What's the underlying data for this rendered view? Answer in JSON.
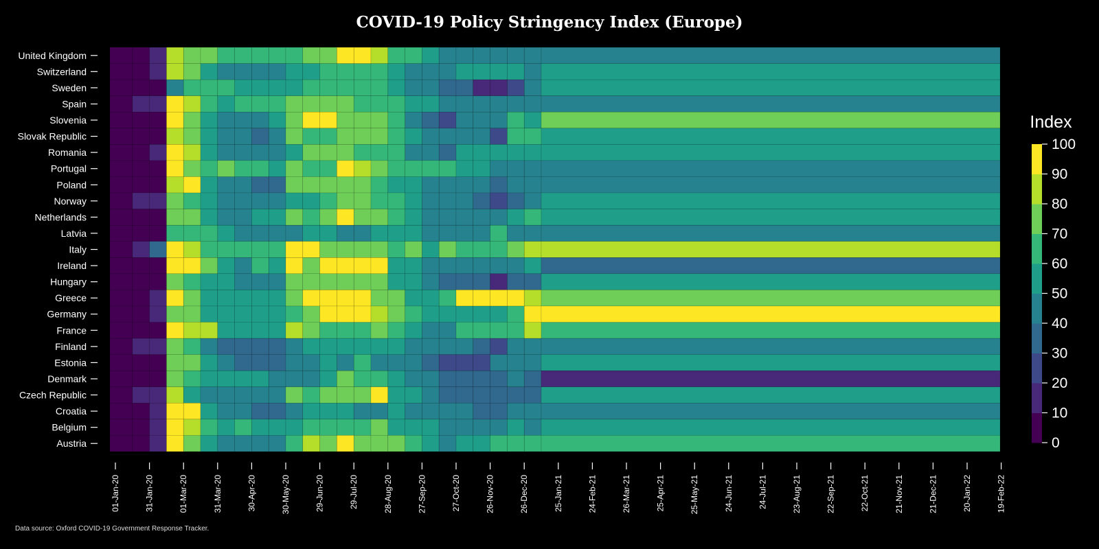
{
  "chart_data": {
    "type": "heatmap",
    "title": "COVID-19 Policy Stringency Index (Europe)",
    "colorbar_label": "Index",
    "colorbar_ticks": [
      0,
      10,
      20,
      30,
      40,
      50,
      60,
      70,
      80,
      90,
      100
    ],
    "color_range": [
      0,
      100
    ],
    "bin_size_days": 15,
    "x_tick_labels": [
      "01-Jan-20",
      "31-Jan-20",
      "01-Mar-20",
      "31-Mar-20",
      "30-Apr-20",
      "30-May-20",
      "29-Jun-20",
      "29-Jul-20",
      "28-Aug-20",
      "27-Sep-20",
      "27-Oct-20",
      "26-Nov-20",
      "26-Dec-20",
      "25-Jan-21",
      "24-Feb-21",
      "26-Mar-21",
      "25-Apr-21",
      "25-May-21",
      "24-Jun-21",
      "24-Jul-21",
      "23-Aug-21",
      "22-Sep-21",
      "22-Oct-21",
      "21-Nov-21",
      "21-Dec-21",
      "20-Jan-22",
      "19-Feb-22"
    ],
    "countries": [
      "United Kingdom",
      "Switzerland",
      "Sweden",
      "Spain",
      "Slovenia",
      "Slovak Republic",
      "Romania",
      "Portugal",
      "Poland",
      "Norway",
      "Netherlands",
      "Latvia",
      "Italy",
      "Ireland",
      "Hungary",
      "Greece",
      "Germany",
      "France",
      "Finland",
      "Estonia",
      "Denmark",
      "Czech Republic",
      "Croatia",
      "Belgium",
      "Austria"
    ],
    "series": [
      {
        "name": "United Kingdom",
        "values": [
          5,
          5,
          15,
          85,
          78,
          70,
          65,
          68,
          65,
          66,
          63,
          70,
          75,
          90,
          92,
          80,
          68,
          60,
          55,
          45,
          42,
          42,
          42,
          42,
          42,
          44
        ]
      },
      {
        "name": "Switzerland",
        "values": [
          5,
          5,
          10,
          80,
          72,
          58,
          42,
          45,
          48,
          48,
          50,
          58,
          66,
          66,
          64,
          60,
          52,
          45,
          46,
          46,
          50,
          56,
          56,
          50,
          45,
          55
        ]
      },
      {
        "name": "Sweden",
        "values": [
          5,
          5,
          5,
          45,
          62,
          64,
          60,
          55,
          55,
          55,
          58,
          64,
          66,
          64,
          60,
          60,
          58,
          48,
          40,
          35,
          30,
          10,
          10,
          20,
          42,
          52
        ]
      },
      {
        "name": "Spain",
        "values": [
          5,
          15,
          15,
          92,
          88,
          62,
          55,
          60,
          60,
          60,
          72,
          74,
          74,
          72,
          68,
          65,
          60,
          55,
          50,
          48,
          46,
          44,
          44,
          44,
          48,
          48
        ]
      },
      {
        "name": "Slovenia",
        "values": [
          5,
          5,
          5,
          95,
          70,
          55,
          40,
          45,
          48,
          55,
          70,
          95,
          95,
          75,
          70,
          75,
          60,
          48,
          35,
          25,
          40,
          40,
          48,
          62,
          55,
          78
        ]
      },
      {
        "name": "Slovak Republic",
        "values": [
          5,
          5,
          5,
          82,
          75,
          52,
          42,
          40,
          38,
          40,
          70,
          62,
          60,
          75,
          75,
          70,
          65,
          50,
          48,
          46,
          40,
          40,
          28,
          60,
          68,
          50
        ]
      },
      {
        "name": "Romania",
        "values": [
          5,
          5,
          10,
          95,
          82,
          54,
          48,
          48,
          48,
          48,
          54,
          76,
          76,
          72,
          68,
          65,
          60,
          48,
          42,
          38,
          55,
          55,
          55,
          55,
          55,
          55
        ]
      },
      {
        "name": "Portugal",
        "values": [
          5,
          5,
          5,
          92,
          75,
          64,
          70,
          68,
          66,
          58,
          70,
          65,
          65,
          95,
          80,
          70,
          68,
          62,
          60,
          60,
          55,
          50,
          48,
          48,
          48,
          42
        ]
      },
      {
        "name": "Poland",
        "values": [
          5,
          5,
          5,
          85,
          90,
          55,
          40,
          40,
          38,
          30,
          75,
          75,
          75,
          74,
          72,
          66,
          55,
          52,
          46,
          42,
          40,
          40,
          38,
          44,
          48,
          44
        ]
      },
      {
        "name": "Norway",
        "values": [
          5,
          15,
          15,
          76,
          65,
          52,
          48,
          44,
          40,
          40,
          52,
          54,
          60,
          70,
          74,
          68,
          60,
          52,
          46,
          44,
          40,
          30,
          25,
          30,
          44,
          52
        ]
      },
      {
        "name": "Netherlands",
        "values": [
          5,
          5,
          5,
          78,
          76,
          55,
          42,
          44,
          52,
          58,
          70,
          60,
          76,
          95,
          76,
          72,
          66,
          55,
          42,
          42,
          44,
          44,
          44,
          52,
          62,
          52
        ]
      },
      {
        "name": "Latvia",
        "values": [
          5,
          5,
          5,
          68,
          68,
          60,
          55,
          46,
          46,
          42,
          46,
          52,
          58,
          48,
          48,
          50,
          50,
          50,
          45,
          42,
          42,
          40,
          60,
          48,
          42,
          44
        ]
      },
      {
        "name": "Italy",
        "values": [
          5,
          10,
          30,
          95,
          82,
          66,
          66,
          66,
          66,
          66,
          92,
          95,
          72,
          72,
          78,
          76,
          62,
          72,
          55,
          72,
          66,
          66,
          66,
          78,
          80,
          80
        ]
      },
      {
        "name": "Ireland",
        "values": [
          5,
          5,
          5,
          94,
          94,
          78,
          56,
          40,
          62,
          56,
          95,
          70,
          95,
          95,
          95,
          95,
          52,
          52,
          46,
          46,
          46,
          46,
          46,
          44,
          52,
          35
        ]
      },
      {
        "name": "Hungary",
        "values": [
          5,
          5,
          5,
          72,
          68,
          55,
          52,
          45,
          45,
          45,
          75,
          75,
          75,
          75,
          75,
          75,
          55,
          52,
          42,
          30,
          30,
          30,
          10,
          30,
          30,
          55
        ]
      },
      {
        "name": "Greece",
        "values": [
          5,
          5,
          10,
          92,
          75,
          58,
          55,
          56,
          56,
          54,
          70,
          95,
          95,
          95,
          95,
          78,
          72,
          58,
          52,
          66,
          95,
          95,
          95,
          95,
          80,
          78
        ]
      },
      {
        "name": "Germany",
        "values": [
          5,
          5,
          10,
          78,
          72,
          58,
          55,
          58,
          54,
          54,
          62,
          75,
          95,
          95,
          92,
          88,
          78,
          60,
          56,
          50,
          55,
          50,
          50,
          60,
          90,
          95
        ]
      },
      {
        "name": "France",
        "values": [
          5,
          5,
          5,
          92,
          86,
          80,
          55,
          50,
          50,
          50,
          80,
          75,
          66,
          66,
          66,
          76,
          62,
          55,
          48,
          48,
          66,
          66,
          66,
          66,
          80,
          66
        ]
      },
      {
        "name": "Finland",
        "values": [
          5,
          15,
          15,
          78,
          62,
          42,
          38,
          38,
          38,
          38,
          40,
          52,
          55,
          55,
          52,
          52,
          52,
          48,
          42,
          42,
          40,
          38,
          25,
          40,
          44,
          48
        ]
      },
      {
        "name": "Estonia",
        "values": [
          5,
          5,
          5,
          78,
          74,
          52,
          40,
          38,
          38,
          38,
          48,
          48,
          52,
          44,
          66,
          48,
          42,
          42,
          36,
          26,
          26,
          26,
          40,
          48,
          40,
          55
        ]
      },
      {
        "name": "Denmark",
        "values": [
          5,
          5,
          5,
          74,
          62,
          55,
          50,
          50,
          52,
          48,
          48,
          48,
          58,
          72,
          66,
          66,
          58,
          46,
          40,
          38,
          38,
          30,
          30,
          40,
          38,
          16
        ]
      },
      {
        "name": "Czech Republic",
        "values": [
          5,
          15,
          15,
          80,
          56,
          46,
          42,
          42,
          42,
          40,
          76,
          65,
          76,
          78,
          78,
          92,
          56,
          50,
          44,
          38,
          38,
          34,
          34,
          38,
          38,
          50
        ]
      },
      {
        "name": "Croatia",
        "values": [
          5,
          5,
          15,
          95,
          95,
          56,
          46,
          40,
          34,
          30,
          40,
          52,
          52,
          52,
          48,
          48,
          52,
          42,
          42,
          40,
          40,
          38,
          38,
          46,
          46,
          46
        ]
      },
      {
        "name": "Belgium",
        "values": [
          5,
          5,
          15,
          95,
          80,
          60,
          55,
          60,
          58,
          52,
          56,
          66,
          66,
          66,
          66,
          72,
          58,
          52,
          50,
          46,
          46,
          48,
          48,
          55,
          48,
          58
        ]
      },
      {
        "name": "Austria",
        "values": [
          5,
          5,
          10,
          95,
          78,
          54,
          48,
          40,
          40,
          40,
          60,
          82,
          72,
          95,
          78,
          74,
          74,
          62,
          58,
          44,
          54,
          54,
          62,
          62,
          66,
          66
        ]
      }
    ]
  },
  "source_note": "Data source: Oxford COVID-19 Government Response Tracker."
}
